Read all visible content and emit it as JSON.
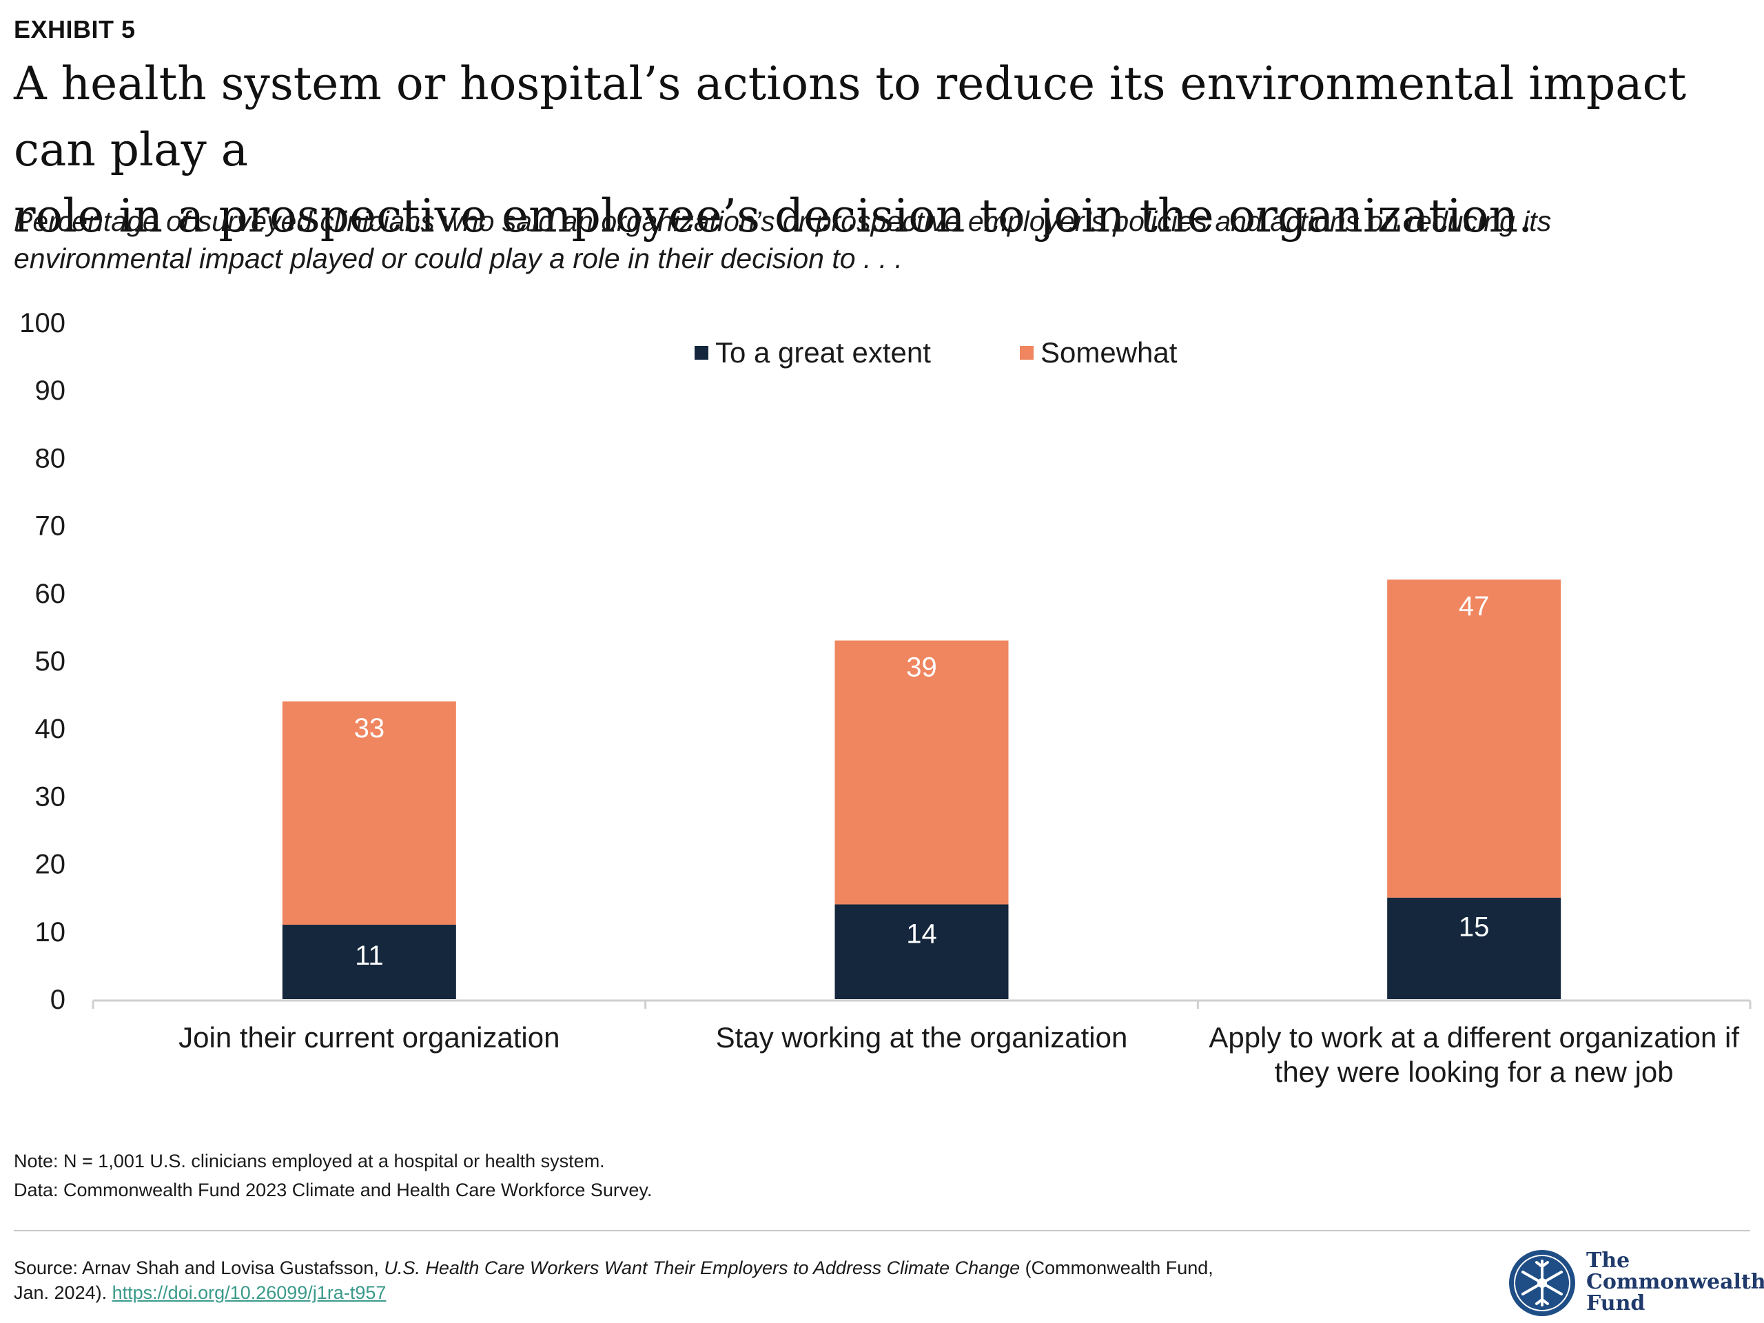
{
  "header": {
    "exhibit": "EXHIBIT 5",
    "title_line1": "A health system or hospital’s actions to reduce its environmental impact can play a",
    "title_line2": "role in a prospective employee’s decision to join the organization.",
    "subtitle_line1": "Percentage of surveyed clinicians who said an organization’s or prospective employer’s policies and actions on reducing its",
    "subtitle_line2": "environmental impact played or could play a role in their decision to . . ."
  },
  "chart_data": {
    "type": "bar",
    "stacked": true,
    "categories": [
      [
        "Join their current organization"
      ],
      [
        "Stay working at the organization"
      ],
      [
        "Apply to work at a different organization if",
        "they were looking for a new job"
      ]
    ],
    "series": [
      {
        "name": "To a great extent",
        "values": [
          11,
          14,
          15
        ],
        "color": "#14273d"
      },
      {
        "name": "Somewhat",
        "values": [
          33,
          39,
          47
        ],
        "color": "#ef8660"
      }
    ],
    "ylim": [
      0,
      100
    ],
    "yticks": [
      0,
      10,
      20,
      30,
      40,
      50,
      60,
      70,
      80,
      90,
      100
    ],
    "legend_position": "top-center",
    "grid": false,
    "data_labels": true
  },
  "footer": {
    "note": "Note: N = 1,001 U.S. clinicians employed at a hospital or health system.",
    "data": "Data: Commonwealth Fund 2023 Climate and Health Care Workforce Survey.",
    "source_prefix": "Source: Arnav Shah and Lovisa Gustafsson, ",
    "source_title": "U.S. Health Care Workers Want Their Employers to Address Climate Change",
    "source_suffix": " (Commonwealth Fund,",
    "source_line2": "Jan. 2024). ",
    "source_link": "https://doi.org/10.26099/j1ra-t957",
    "logo_line1": "The",
    "logo_line2": "Commonwealth",
    "logo_line3": "Fund",
    "logo_icon": "snowflake-seal-icon"
  },
  "colors": {
    "navy": "#14273d",
    "orange": "#ef8660",
    "axis": "#cfcfcf",
    "link": "#3a9a8a"
  }
}
